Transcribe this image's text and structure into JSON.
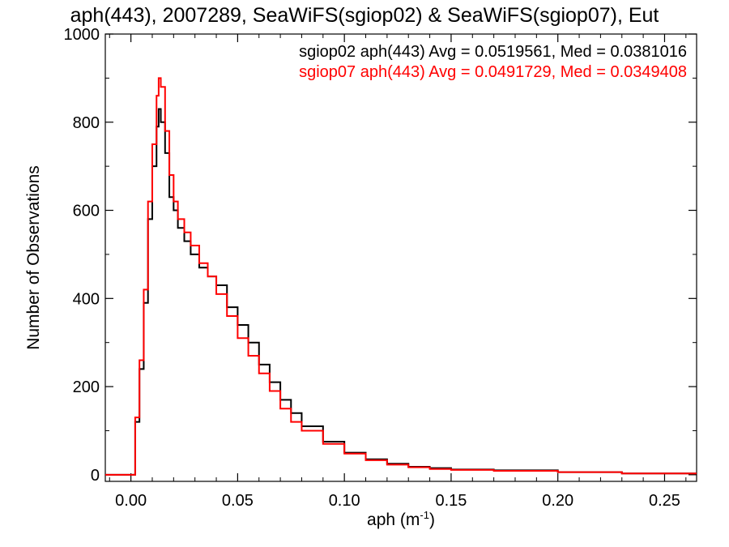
{
  "chart_data": {
    "type": "line",
    "title": "aph(443), 2007289, SeaWiFS(sgiop02) & SeaWiFS(sgiop07), Eut",
    "xlabel": "aph (m",
    "xlabel_sup": "-1",
    "xlabel_close": ")",
    "ylabel": "Number of Observations",
    "xlim": [
      -0.012,
      0.265
    ],
    "ylim": [
      -15,
      1000
    ],
    "x_ticks": [
      0.0,
      0.05,
      0.1,
      0.15,
      0.2,
      0.25
    ],
    "x_tick_labels": [
      "0.00",
      "0.05",
      "0.10",
      "0.15",
      "0.20",
      "0.25"
    ],
    "y_ticks": [
      0,
      200,
      400,
      600,
      800,
      1000
    ],
    "y_tick_labels": [
      "0",
      "200",
      "400",
      "600",
      "800",
      "1000"
    ],
    "grid": false,
    "legend_position": "top-right",
    "series": [
      {
        "name": "sgiop02 aph(443) Avg = 0.0519561, Med = 0.0381016",
        "color": "#000000",
        "x": [
          -0.012,
          0.0,
          0.002,
          0.004,
          0.006,
          0.008,
          0.01,
          0.012,
          0.013,
          0.014,
          0.016,
          0.018,
          0.02,
          0.022,
          0.025,
          0.028,
          0.032,
          0.036,
          0.04,
          0.045,
          0.05,
          0.055,
          0.06,
          0.065,
          0.07,
          0.075,
          0.08,
          0.09,
          0.1,
          0.11,
          0.12,
          0.13,
          0.14,
          0.15,
          0.17,
          0.2,
          0.23,
          0.265
        ],
        "y": [
          0,
          0,
          120,
          240,
          390,
          580,
          700,
          790,
          830,
          800,
          730,
          630,
          600,
          560,
          530,
          500,
          470,
          450,
          430,
          380,
          340,
          300,
          250,
          210,
          170,
          140,
          110,
          75,
          50,
          35,
          25,
          18,
          15,
          12,
          10,
          6,
          3,
          3
        ]
      },
      {
        "name": "sgiop07 aph(443) Avg = 0.0491729, Med = 0.0349408",
        "color": "#ff0000",
        "x": [
          -0.012,
          0.0,
          0.002,
          0.004,
          0.006,
          0.008,
          0.01,
          0.012,
          0.013,
          0.014,
          0.016,
          0.018,
          0.02,
          0.022,
          0.025,
          0.028,
          0.032,
          0.036,
          0.04,
          0.045,
          0.05,
          0.055,
          0.06,
          0.065,
          0.07,
          0.075,
          0.08,
          0.09,
          0.1,
          0.11,
          0.12,
          0.13,
          0.14,
          0.15,
          0.17,
          0.2,
          0.23,
          0.265
        ],
        "y": [
          0,
          0,
          130,
          260,
          420,
          620,
          750,
          860,
          900,
          880,
          780,
          680,
          620,
          580,
          550,
          520,
          480,
          450,
          410,
          360,
          310,
          270,
          230,
          190,
          150,
          120,
          100,
          70,
          48,
          33,
          23,
          17,
          13,
          11,
          9,
          6,
          3,
          3
        ]
      }
    ]
  }
}
